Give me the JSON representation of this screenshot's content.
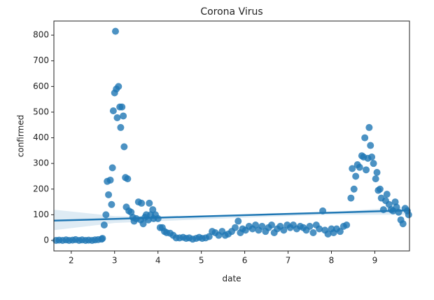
{
  "chart_data": {
    "type": "scatter",
    "title": "Corona Virus",
    "x_label": "date",
    "y_label": "confirmed",
    "color": "#1f77b4",
    "x": [
      1.65,
      1.72,
      1.8,
      1.88,
      1.95,
      2.03,
      2.1,
      2.18,
      2.25,
      2.33,
      2.4,
      2.48,
      2.55,
      2.62,
      2.7,
      2.72,
      2.76,
      2.8,
      2.83,
      2.86,
      2.9,
      2.93,
      2.95,
      2.97,
      3.0,
      3.02,
      3.04,
      3.06,
      3.09,
      3.12,
      3.14,
      3.17,
      3.2,
      3.22,
      3.25,
      3.27,
      3.3,
      3.33,
      3.38,
      3.42,
      3.45,
      3.5,
      3.55,
      3.6,
      3.62,
      3.66,
      3.7,
      3.73,
      3.78,
      3.8,
      3.83,
      3.88,
      3.9,
      3.94,
      4.0,
      4.05,
      4.1,
      4.15,
      4.2,
      4.28,
      4.35,
      4.42,
      4.5,
      4.58,
      4.65,
      4.72,
      4.8,
      4.88,
      4.95,
      5.02,
      5.1,
      5.18,
      5.25,
      5.32,
      5.4,
      5.48,
      5.55,
      5.62,
      5.7,
      5.78,
      5.85,
      5.9,
      5.95,
      6.02,
      6.1,
      6.18,
      6.25,
      6.32,
      6.4,
      6.48,
      6.55,
      6.62,
      6.68,
      6.75,
      6.82,
      6.9,
      6.98,
      7.05,
      7.12,
      7.2,
      7.28,
      7.35,
      7.42,
      7.5,
      7.58,
      7.65,
      7.72,
      7.8,
      7.85,
      7.92,
      8.0,
      8.05,
      8.12,
      8.2,
      8.28,
      8.35,
      8.45,
      8.48,
      8.52,
      8.56,
      8.6,
      8.65,
      8.7,
      8.74,
      8.77,
      8.8,
      8.84,
      8.87,
      8.9,
      8.93,
      8.97,
      9.02,
      9.05,
      9.08,
      9.12,
      9.15,
      9.2,
      9.25,
      9.28,
      9.33,
      9.38,
      9.42,
      9.47,
      9.5,
      9.55,
      9.6,
      9.65,
      9.7,
      9.75,
      9.78
    ],
    "values": [
      0,
      1,
      0,
      2,
      0,
      1,
      3,
      0,
      2,
      0,
      1,
      0,
      2,
      3,
      5,
      8,
      60,
      100,
      230,
      178,
      235,
      140,
      283,
      505,
      575,
      815,
      590,
      478,
      600,
      520,
      440,
      520,
      485,
      365,
      245,
      130,
      240,
      115,
      110,
      90,
      75,
      85,
      150,
      80,
      145,
      65,
      90,
      100,
      80,
      145,
      100,
      120,
      85,
      100,
      85,
      50,
      50,
      35,
      30,
      28,
      20,
      10,
      10,
      12,
      8,
      10,
      5,
      8,
      12,
      8,
      10,
      15,
      35,
      30,
      20,
      35,
      20,
      25,
      35,
      50,
      75,
      30,
      45,
      40,
      55,
      45,
      60,
      40,
      55,
      35,
      50,
      60,
      30,
      45,
      55,
      40,
      60,
      50,
      60,
      45,
      55,
      50,
      40,
      55,
      30,
      60,
      45,
      115,
      40,
      25,
      45,
      30,
      45,
      35,
      55,
      60,
      165,
      280,
      200,
      250,
      295,
      285,
      330,
      325,
      400,
      275,
      320,
      440,
      370,
      325,
      300,
      240,
      265,
      195,
      200,
      165,
      120,
      155,
      180,
      140,
      120,
      115,
      150,
      130,
      110,
      80,
      65,
      125,
      115,
      100
    ],
    "fit": {
      "x": [
        1.6,
        9.8
      ],
      "y": [
        77,
        117
      ]
    },
    "band": {
      "x": [
        1.6,
        3,
        5,
        6.5,
        8,
        9.8
      ],
      "lower": [
        40,
        68,
        82,
        92,
        100,
        100
      ],
      "upper": [
        120,
        95,
        90,
        98,
        110,
        132
      ]
    },
    "xlim": [
      1.6,
      9.8
    ],
    "ylim": [
      -41,
      855
    ],
    "xticks": [
      2,
      3,
      4,
      5,
      6,
      7,
      8,
      9
    ],
    "yticks": [
      0,
      100,
      200,
      300,
      400,
      500,
      600,
      700,
      800
    ]
  }
}
